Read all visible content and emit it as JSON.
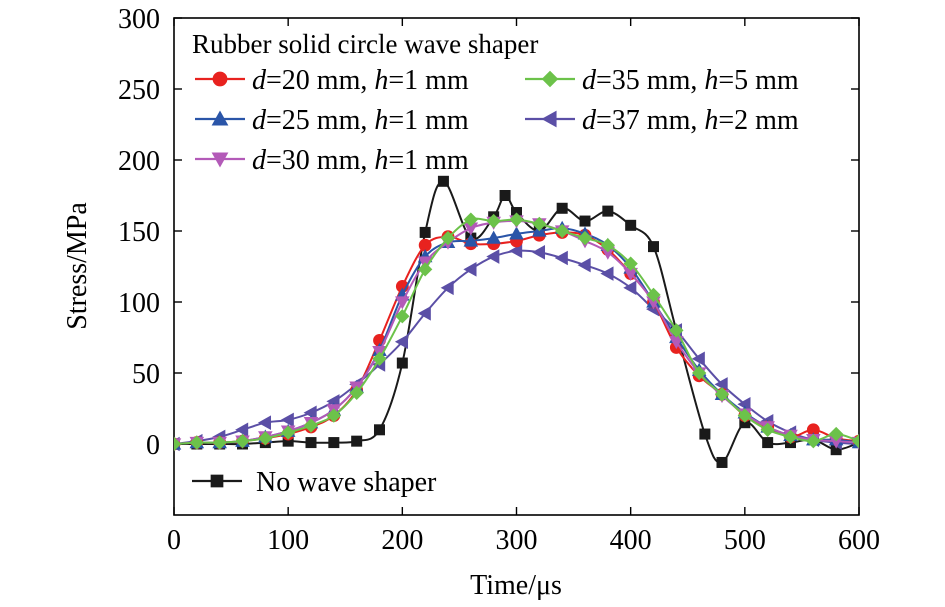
{
  "chart_data": {
    "type": "line",
    "xlabel": "Time/μs",
    "ylabel": "Stress/MPa",
    "xlim": [
      0,
      600
    ],
    "ylim": [
      -50,
      300
    ],
    "xticks": [
      0,
      100,
      200,
      300,
      400,
      500,
      600
    ],
    "yticks": [
      0,
      50,
      100,
      150,
      200,
      250,
      300
    ],
    "grid": false,
    "legend_title": "Rubber solid circle wave shaper",
    "legend_placement": "top-left",
    "series": [
      {
        "name": "d=20 mm, h=1 mm",
        "legend": {
          "d": "20",
          "h": "1"
        },
        "color": "#e8221f",
        "marker": "circle",
        "x": [
          0,
          20,
          40,
          60,
          80,
          100,
          120,
          140,
          160,
          180,
          200,
          220,
          240,
          260,
          280,
          300,
          320,
          340,
          360,
          380,
          400,
          420,
          440,
          460,
          480,
          500,
          520,
          540,
          560,
          580,
          600
        ],
        "y": [
          0,
          1,
          1,
          2,
          4,
          7,
          12,
          20,
          38,
          73,
          111,
          140,
          146,
          141,
          141,
          143,
          147,
          149,
          147,
          137,
          120,
          100,
          68,
          48,
          35,
          20,
          12,
          5,
          10,
          4,
          2
        ]
      },
      {
        "name": "d=25 mm, h=1 mm",
        "legend": {
          "d": "25",
          "h": "1"
        },
        "color": "#2a55a8",
        "marker": "triangle-up",
        "x": [
          0,
          20,
          40,
          60,
          80,
          100,
          120,
          140,
          160,
          180,
          200,
          220,
          240,
          260,
          280,
          300,
          320,
          340,
          360,
          380,
          400,
          420,
          440,
          460,
          480,
          500,
          520,
          540,
          560,
          580,
          600
        ],
        "y": [
          0,
          1,
          1,
          2,
          5,
          9,
          15,
          24,
          40,
          66,
          105,
          132,
          142,
          143,
          145,
          148,
          150,
          152,
          148,
          140,
          124,
          100,
          75,
          52,
          35,
          22,
          12,
          6,
          3,
          3,
          1
        ]
      },
      {
        "name": "d=30 mm, h=1 mm",
        "legend": {
          "d": "30",
          "h": "1"
        },
        "color": "#b35ab8",
        "marker": "triangle-down",
        "x": [
          0,
          20,
          40,
          60,
          80,
          100,
          120,
          140,
          160,
          180,
          200,
          220,
          240,
          260,
          280,
          300,
          320,
          340,
          360,
          380,
          400,
          420,
          440,
          460,
          480,
          500,
          520,
          540,
          560,
          580,
          600
        ],
        "y": [
          0,
          1,
          1,
          2,
          5,
          9,
          15,
          24,
          40,
          65,
          100,
          128,
          142,
          152,
          156,
          157,
          155,
          150,
          143,
          135,
          120,
          100,
          72,
          50,
          34,
          21,
          12,
          6,
          3,
          2,
          1
        ]
      },
      {
        "name": "d=35 mm, h=5 mm",
        "legend": {
          "d": "35",
          "h": "5"
        },
        "color": "#6cc24a",
        "marker": "diamond",
        "x": [
          0,
          20,
          40,
          60,
          80,
          100,
          120,
          140,
          160,
          180,
          200,
          220,
          240,
          260,
          280,
          300,
          320,
          340,
          360,
          380,
          400,
          420,
          440,
          460,
          480,
          500,
          520,
          540,
          560,
          580,
          600
        ],
        "y": [
          0,
          1,
          1,
          2,
          4,
          8,
          13,
          20,
          36,
          60,
          90,
          123,
          145,
          158,
          157,
          158,
          155,
          150,
          145,
          140,
          127,
          105,
          80,
          50,
          35,
          20,
          10,
          5,
          2,
          7,
          2
        ]
      },
      {
        "name": "d=37 mm, h=2 mm",
        "legend": {
          "d": "37",
          "h": "2"
        },
        "color": "#5b4fa6",
        "marker": "triangle-left",
        "x": [
          0,
          20,
          40,
          60,
          80,
          100,
          120,
          140,
          160,
          180,
          200,
          220,
          240,
          260,
          280,
          300,
          320,
          340,
          360,
          380,
          400,
          420,
          440,
          460,
          480,
          500,
          520,
          540,
          560,
          580,
          600
        ],
        "y": [
          0,
          2,
          5,
          10,
          15,
          17,
          22,
          30,
          42,
          56,
          72,
          92,
          110,
          123,
          132,
          136,
          135,
          131,
          126,
          120,
          110,
          95,
          80,
          60,
          42,
          28,
          16,
          8,
          3,
          1,
          0
        ]
      },
      {
        "name": "No wave shaper",
        "legend": {
          "text": "No wave shaper"
        },
        "color": "#1a1a1a",
        "marker": "square",
        "x": [
          0,
          20,
          40,
          60,
          80,
          100,
          120,
          140,
          160,
          180,
          200,
          220,
          236,
          260,
          280,
          290,
          300,
          320,
          340,
          360,
          380,
          400,
          420,
          440,
          465,
          480,
          500,
          520,
          540,
          560,
          580,
          600
        ],
        "y": [
          0,
          0,
          0,
          0,
          1,
          2,
          1,
          1,
          2,
          10,
          57,
          149,
          185,
          145,
          160,
          175,
          163,
          150,
          166,
          157,
          164,
          154,
          139,
          80,
          7,
          -13,
          15,
          1,
          1,
          3,
          -4,
          1
        ]
      }
    ]
  }
}
